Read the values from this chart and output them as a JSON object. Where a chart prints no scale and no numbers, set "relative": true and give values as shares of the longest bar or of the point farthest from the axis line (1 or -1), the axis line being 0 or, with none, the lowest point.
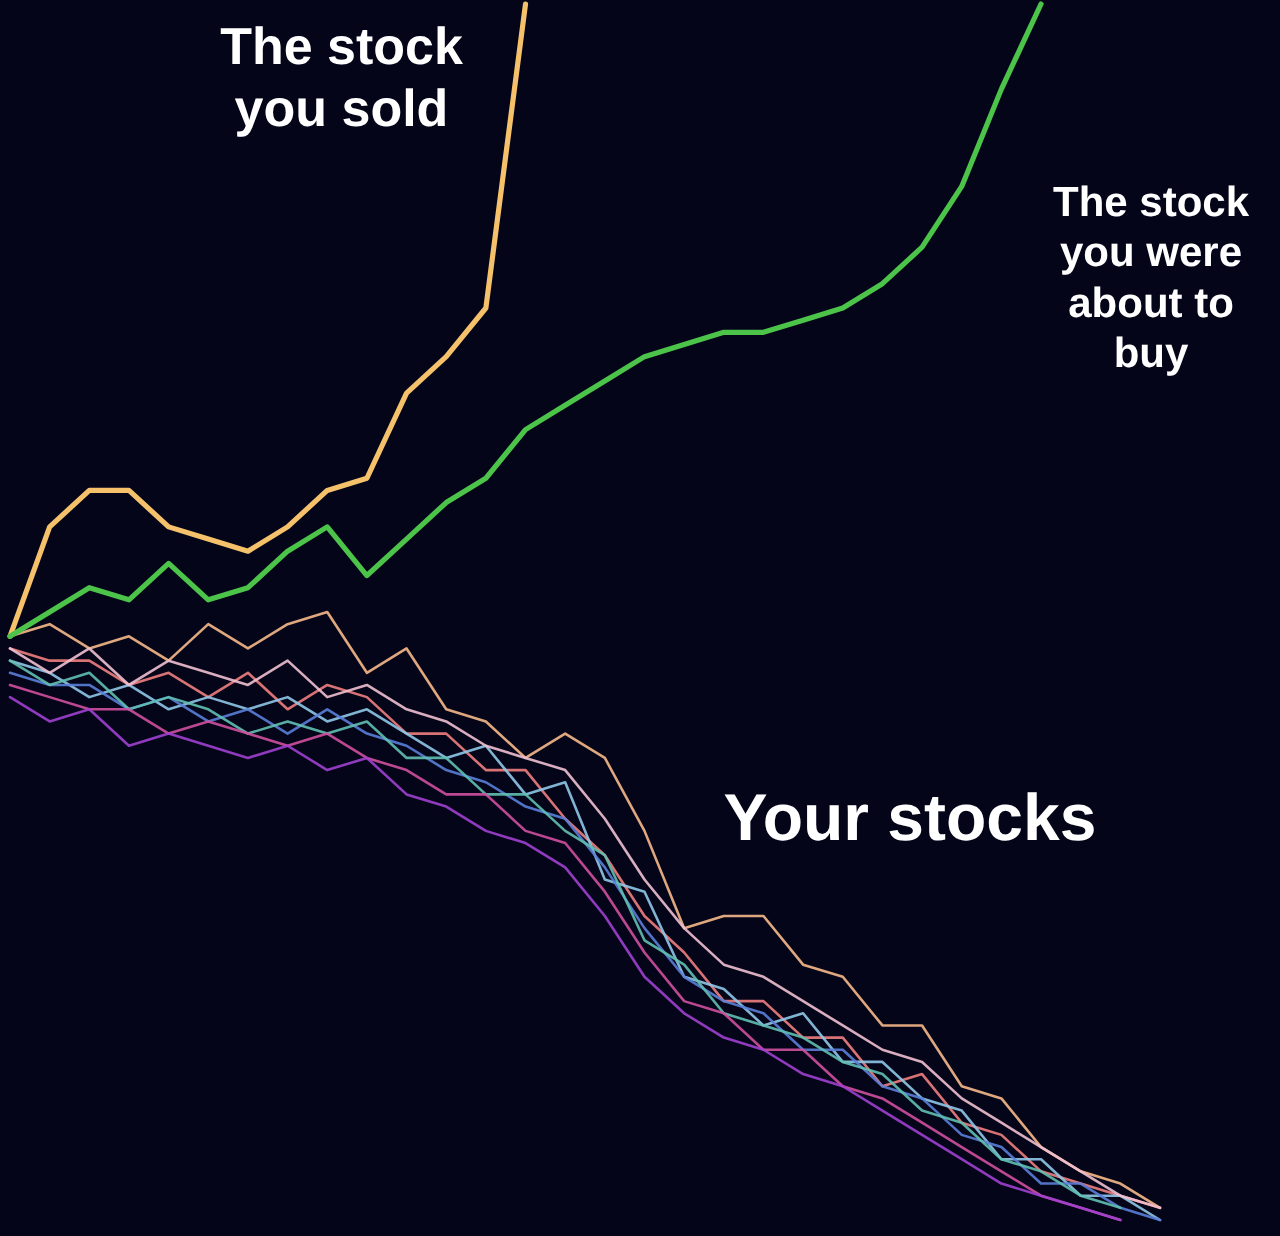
{
  "chart_data": {
    "type": "line",
    "relative": true,
    "categories": [
      null,
      null,
      null,
      null,
      null,
      null,
      null,
      null,
      null,
      null,
      null,
      null,
      null,
      null,
      null,
      null,
      null,
      null,
      null,
      null,
      null,
      null,
      null,
      null,
      null,
      null,
      null,
      null,
      null,
      null
    ],
    "series": [
      {
        "name": "The stock\nyou sold",
        "color": "#f5c26b",
        "values": [
          0.48,
          0.57,
          0.6,
          0.6,
          0.57,
          0.56,
          0.55,
          0.57,
          0.6,
          0.61,
          0.68,
          0.71,
          0.75,
          1,
          null,
          null,
          null,
          null,
          null,
          null,
          null,
          null,
          null,
          null,
          null,
          null,
          null,
          null,
          null,
          null
        ]
      },
      {
        "name": "The stock\nyou were\nabout to\nbuy",
        "color": "#4cc44a",
        "values": [
          0.48,
          0.5,
          0.52,
          0.51,
          0.54,
          0.51,
          0.52,
          0.55,
          0.57,
          0.53,
          0.56,
          0.59,
          0.61,
          0.65,
          0.67,
          0.69,
          0.71,
          0.72,
          0.73,
          0.73,
          0.74,
          0.75,
          0.77,
          0.8,
          0.85,
          0.93,
          1,
          null,
          null,
          null
        ]
      },
      {
        "color": "#f7b98a",
        "values": [
          0.48,
          0.49,
          0.47,
          0.48,
          0.46,
          0.49,
          0.47,
          0.49,
          0.5,
          0.45,
          0.47,
          0.42,
          0.41,
          0.38,
          0.4,
          0.38,
          0.32,
          0.24,
          0.25,
          0.25,
          0.21,
          0.2,
          0.16,
          0.16,
          0.11,
          0.1,
          0.06,
          0.04,
          0.03,
          0.01
        ]
      },
      {
        "color": "#f08080",
        "values": [
          0.47,
          0.46,
          0.46,
          0.44,
          0.45,
          0.43,
          0.45,
          0.42,
          0.44,
          0.43,
          0.4,
          0.4,
          0.37,
          0.37,
          0.33,
          0.3,
          0.25,
          0.22,
          0.18,
          0.18,
          0.15,
          0.15,
          0.11,
          0.12,
          0.08,
          0.07,
          0.04,
          0.03,
          0.02,
          0.01
        ]
      },
      {
        "color": "#8fc8e8",
        "values": [
          0.46,
          0.45,
          0.43,
          0.44,
          0.42,
          0.43,
          0.42,
          0.43,
          0.41,
          0.42,
          0.4,
          0.38,
          0.39,
          0.35,
          0.36,
          0.28,
          0.27,
          0.2,
          0.19,
          0.16,
          0.17,
          0.13,
          0.13,
          0.1,
          0.09,
          0.05,
          0.05,
          0.02,
          0.02,
          0.0
        ]
      },
      {
        "color": "#5a7fd8",
        "values": [
          0.45,
          0.44,
          0.44,
          0.42,
          0.43,
          0.41,
          0.42,
          0.4,
          0.42,
          0.4,
          0.39,
          0.37,
          0.36,
          0.34,
          0.33,
          0.29,
          0.24,
          0.2,
          0.18,
          0.17,
          0.14,
          0.14,
          0.11,
          0.1,
          0.07,
          0.06,
          0.03,
          0.03,
          0.01,
          0.0
        ]
      },
      {
        "color": "#60c0b0",
        "values": [
          0.46,
          0.44,
          0.45,
          0.42,
          0.43,
          0.42,
          0.4,
          0.41,
          0.4,
          0.41,
          0.38,
          0.38,
          0.35,
          0.35,
          0.32,
          0.3,
          0.23,
          0.21,
          0.17,
          0.16,
          0.15,
          0.13,
          0.12,
          0.09,
          0.08,
          0.05,
          0.04,
          0.02,
          0.01,
          null
        ]
      },
      {
        "color": "#d050a0",
        "values": [
          0.44,
          0.43,
          0.42,
          0.42,
          0.4,
          0.41,
          0.4,
          0.39,
          0.4,
          0.38,
          0.37,
          0.35,
          0.35,
          0.32,
          0.31,
          0.27,
          0.22,
          0.18,
          0.17,
          0.14,
          0.14,
          0.11,
          0.1,
          0.08,
          0.06,
          0.04,
          0.02,
          0.01,
          0.0,
          null
        ]
      },
      {
        "color": "#a040d0",
        "values": [
          0.43,
          0.41,
          0.42,
          0.39,
          0.4,
          0.39,
          0.38,
          0.39,
          0.37,
          0.38,
          0.35,
          0.34,
          0.32,
          0.31,
          0.29,
          0.25,
          0.2,
          0.17,
          0.15,
          0.14,
          0.12,
          0.11,
          0.09,
          0.07,
          0.05,
          0.03,
          0.02,
          0.01,
          0.0,
          null
        ]
      },
      {
        "color": "#f0c0d0",
        "values": [
          0.47,
          0.45,
          0.47,
          0.44,
          0.46,
          0.45,
          0.44,
          0.46,
          0.43,
          0.44,
          0.42,
          0.41,
          0.39,
          0.38,
          0.37,
          0.33,
          0.28,
          0.24,
          0.21,
          0.2,
          0.18,
          0.16,
          0.14,
          0.13,
          0.1,
          0.08,
          0.06,
          0.04,
          0.02,
          0.01
        ]
      }
    ],
    "annotations": [
      "Your stocks"
    ]
  }
}
